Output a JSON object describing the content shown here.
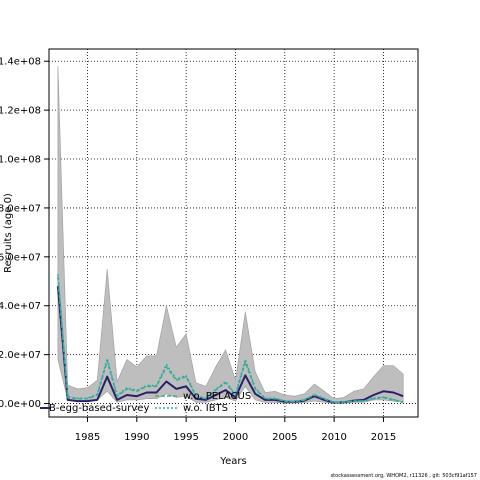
{
  "chart_data": {
    "type": "line",
    "xlabel": "Years",
    "ylabel": "Recruits (age 0)",
    "xlim": [
      1981.1,
      2018.5
    ],
    "ylim": [
      -5500000,
      145000000
    ],
    "x_ticks": [
      1985,
      1990,
      1995,
      2000,
      2005,
      2010,
      2015
    ],
    "x_tick_labels": [
      "1985",
      "1990",
      "1995",
      "2000",
      "2005",
      "2010",
      "2015"
    ],
    "y_ticks": [
      0,
      20000000,
      40000000,
      60000000,
      80000000,
      100000000,
      120000000,
      140000000
    ],
    "y_tick_labels": [
      "0.0e+00",
      "2.0e+07",
      "4.0e+07",
      "6.0e+07",
      "8.0e+07",
      "1.0e+08",
      "1.2e+08",
      "1.4e+08"
    ],
    "grid": true,
    "x": [
      1982,
      1983,
      1984,
      1985,
      1986,
      1987,
      1988,
      1989,
      1990,
      1991,
      1992,
      1993,
      1994,
      1995,
      1996,
      1997,
      1998,
      1999,
      2000,
      2001,
      2002,
      2003,
      2004,
      2005,
      2006,
      2007,
      2008,
      2009,
      2010,
      2011,
      2012,
      2013,
      2014,
      2015,
      2016,
      2017
    ],
    "ci_band": {
      "upper": [
        138000000,
        7500000,
        6000000,
        6500000,
        9500000,
        55000000,
        9000000,
        18000000,
        15000000,
        19500000,
        19500000,
        40000000,
        23000000,
        28500000,
        8500000,
        7000000,
        15000000,
        22000000,
        9500000,
        37500000,
        13000000,
        4500000,
        5000000,
        3500000,
        3000000,
        4000000,
        8000000,
        5000000,
        2000000,
        2500000,
        5000000,
        6000000,
        11000000,
        15500000,
        15500000,
        12000000
      ],
      "lower": [
        18000000,
        1500000,
        1000000,
        1000000,
        1500000,
        5000000,
        500000,
        1500000,
        1500000,
        2000000,
        2000000,
        4000000,
        2500000,
        3000000,
        500000,
        500000,
        1500000,
        2500000,
        1000000,
        7000000,
        1500000,
        500000,
        500000,
        200000,
        200000,
        400000,
        1000000,
        500000,
        100000,
        100000,
        500000,
        500000,
        1500000,
        1500000,
        1000000,
        500000
      ]
    },
    "series": [
      {
        "values": [
          48000000,
          1500000,
          1000000,
          1000000,
          1500000,
          11000000,
          1500000,
          3500000,
          3000000,
          4500000,
          4500000,
          9000000,
          6000000,
          7000000,
          2000000,
          1500000,
          3500000,
          5500000,
          2500000,
          11500000,
          4000000,
          1500000,
          1500000,
          800000,
          700000,
          1200000,
          3000000,
          1500000,
          400000,
          500000,
          1200000,
          1500000,
          3500000,
          5000000,
          4500000,
          3000000
        ],
        "color": "#2a1f6b",
        "width": 2,
        "dash": ""
      },
      {
        "values": [
          52000000,
          2500000,
          2000000,
          2000000,
          3500000,
          17500000,
          3000000,
          6000000,
          5000000,
          7000000,
          7000000,
          15000000,
          9500000,
          11000000,
          3000000,
          2000000,
          5500000,
          8500000,
          3500000,
          17000000,
          6000000,
          2000000,
          2000000,
          1000000,
          800000,
          1500000,
          3500000,
          2000000,
          400000,
          500000,
          1000000,
          1000000,
          2000000,
          2500000,
          1500000,
          500000
        ],
        "color": "#3fb08c",
        "width": 1.6,
        "dash": "4,2"
      },
      {
        "values": [
          53000000,
          2800000,
          2200000,
          2200000,
          3800000,
          18500000,
          3300000,
          6400000,
          5400000,
          7400000,
          7400000,
          16000000,
          10000000,
          11500000,
          3200000,
          2200000,
          5800000,
          9000000,
          3800000,
          18000000,
          6300000,
          2200000,
          2200000,
          1100000,
          900000,
          1600000,
          3700000,
          2100000,
          500000,
          600000,
          1100000,
          1100000,
          2200000,
          2700000,
          1700000,
          600000
        ],
        "color": "#2fa9b0",
        "width": 1.4,
        "dash": "2,2"
      }
    ],
    "band_color": "#bebebe",
    "legend_labels": [
      "B-egg-based-survey",
      "w.o. PELACUS",
      "w.o. IBTS"
    ]
  },
  "footer": "stockassessment.org, WHOM2, r11326 , git: 503cf91af157"
}
